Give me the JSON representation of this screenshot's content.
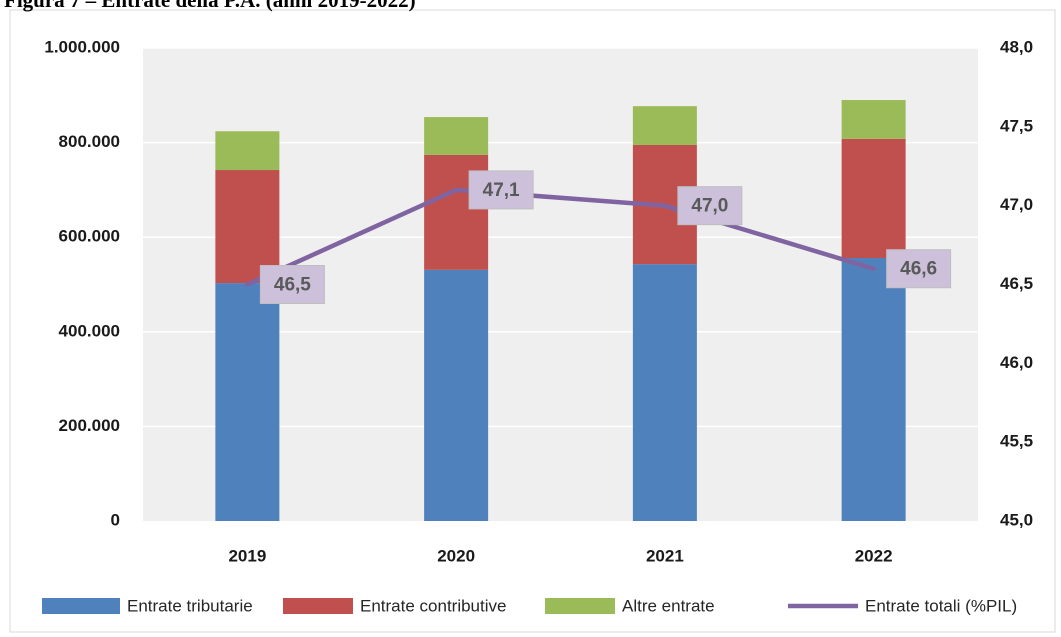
{
  "chart_data": {
    "type": "bar",
    "title": "Figura 7 – Entrate della P.A. (anni 2019-2022)",
    "categories": [
      "2019",
      "2020",
      "2021",
      "2022"
    ],
    "series": [
      {
        "name": "Entrate tributarie",
        "color": "#4f81bd",
        "values": [
          503000,
          531000,
          543000,
          556000
        ]
      },
      {
        "name": "Entrate contributive",
        "color": "#c0504d",
        "values": [
          239000,
          243000,
          252000,
          252000
        ]
      },
      {
        "name": "Altre entrate",
        "color": "#9bbb59",
        "values": [
          82000,
          80000,
          82000,
          82000
        ]
      },
      {
        "name": "Entrate totali (%PIL)",
        "color": "#8064a2",
        "type": "line",
        "axis": "y2",
        "values": [
          46.5,
          47.1,
          47.0,
          46.6
        ],
        "value_labels": [
          "46,5",
          "47,1",
          "47,0",
          "46,6"
        ]
      }
    ],
    "stacked": true,
    "ylim": [
      0,
      1000000
    ],
    "yticks": [
      0,
      {
        "value": 200000,
        "label": "200.000"
      },
      {
        "value": 400000,
        "label": "400.000"
      },
      {
        "value": 600000,
        "label": "600.000"
      },
      {
        "value": 800000,
        "label": "800.000"
      },
      {
        "value": 1000000,
        "label": "1.000.000"
      }
    ],
    "y2lim": [
      45,
      48
    ],
    "y2ticks": [
      {
        "value": 45,
        "label": "45,0"
      },
      {
        "value": 45.5,
        "label": "45,5"
      },
      {
        "value": 46,
        "label": "46,0"
      },
      {
        "value": 46.5,
        "label": "46,5"
      },
      {
        "value": 47,
        "label": "47,0"
      },
      {
        "value": 47.5,
        "label": "47,5"
      },
      {
        "value": 48,
        "label": "48,0"
      }
    ],
    "grid": true,
    "legend": "bottom"
  }
}
